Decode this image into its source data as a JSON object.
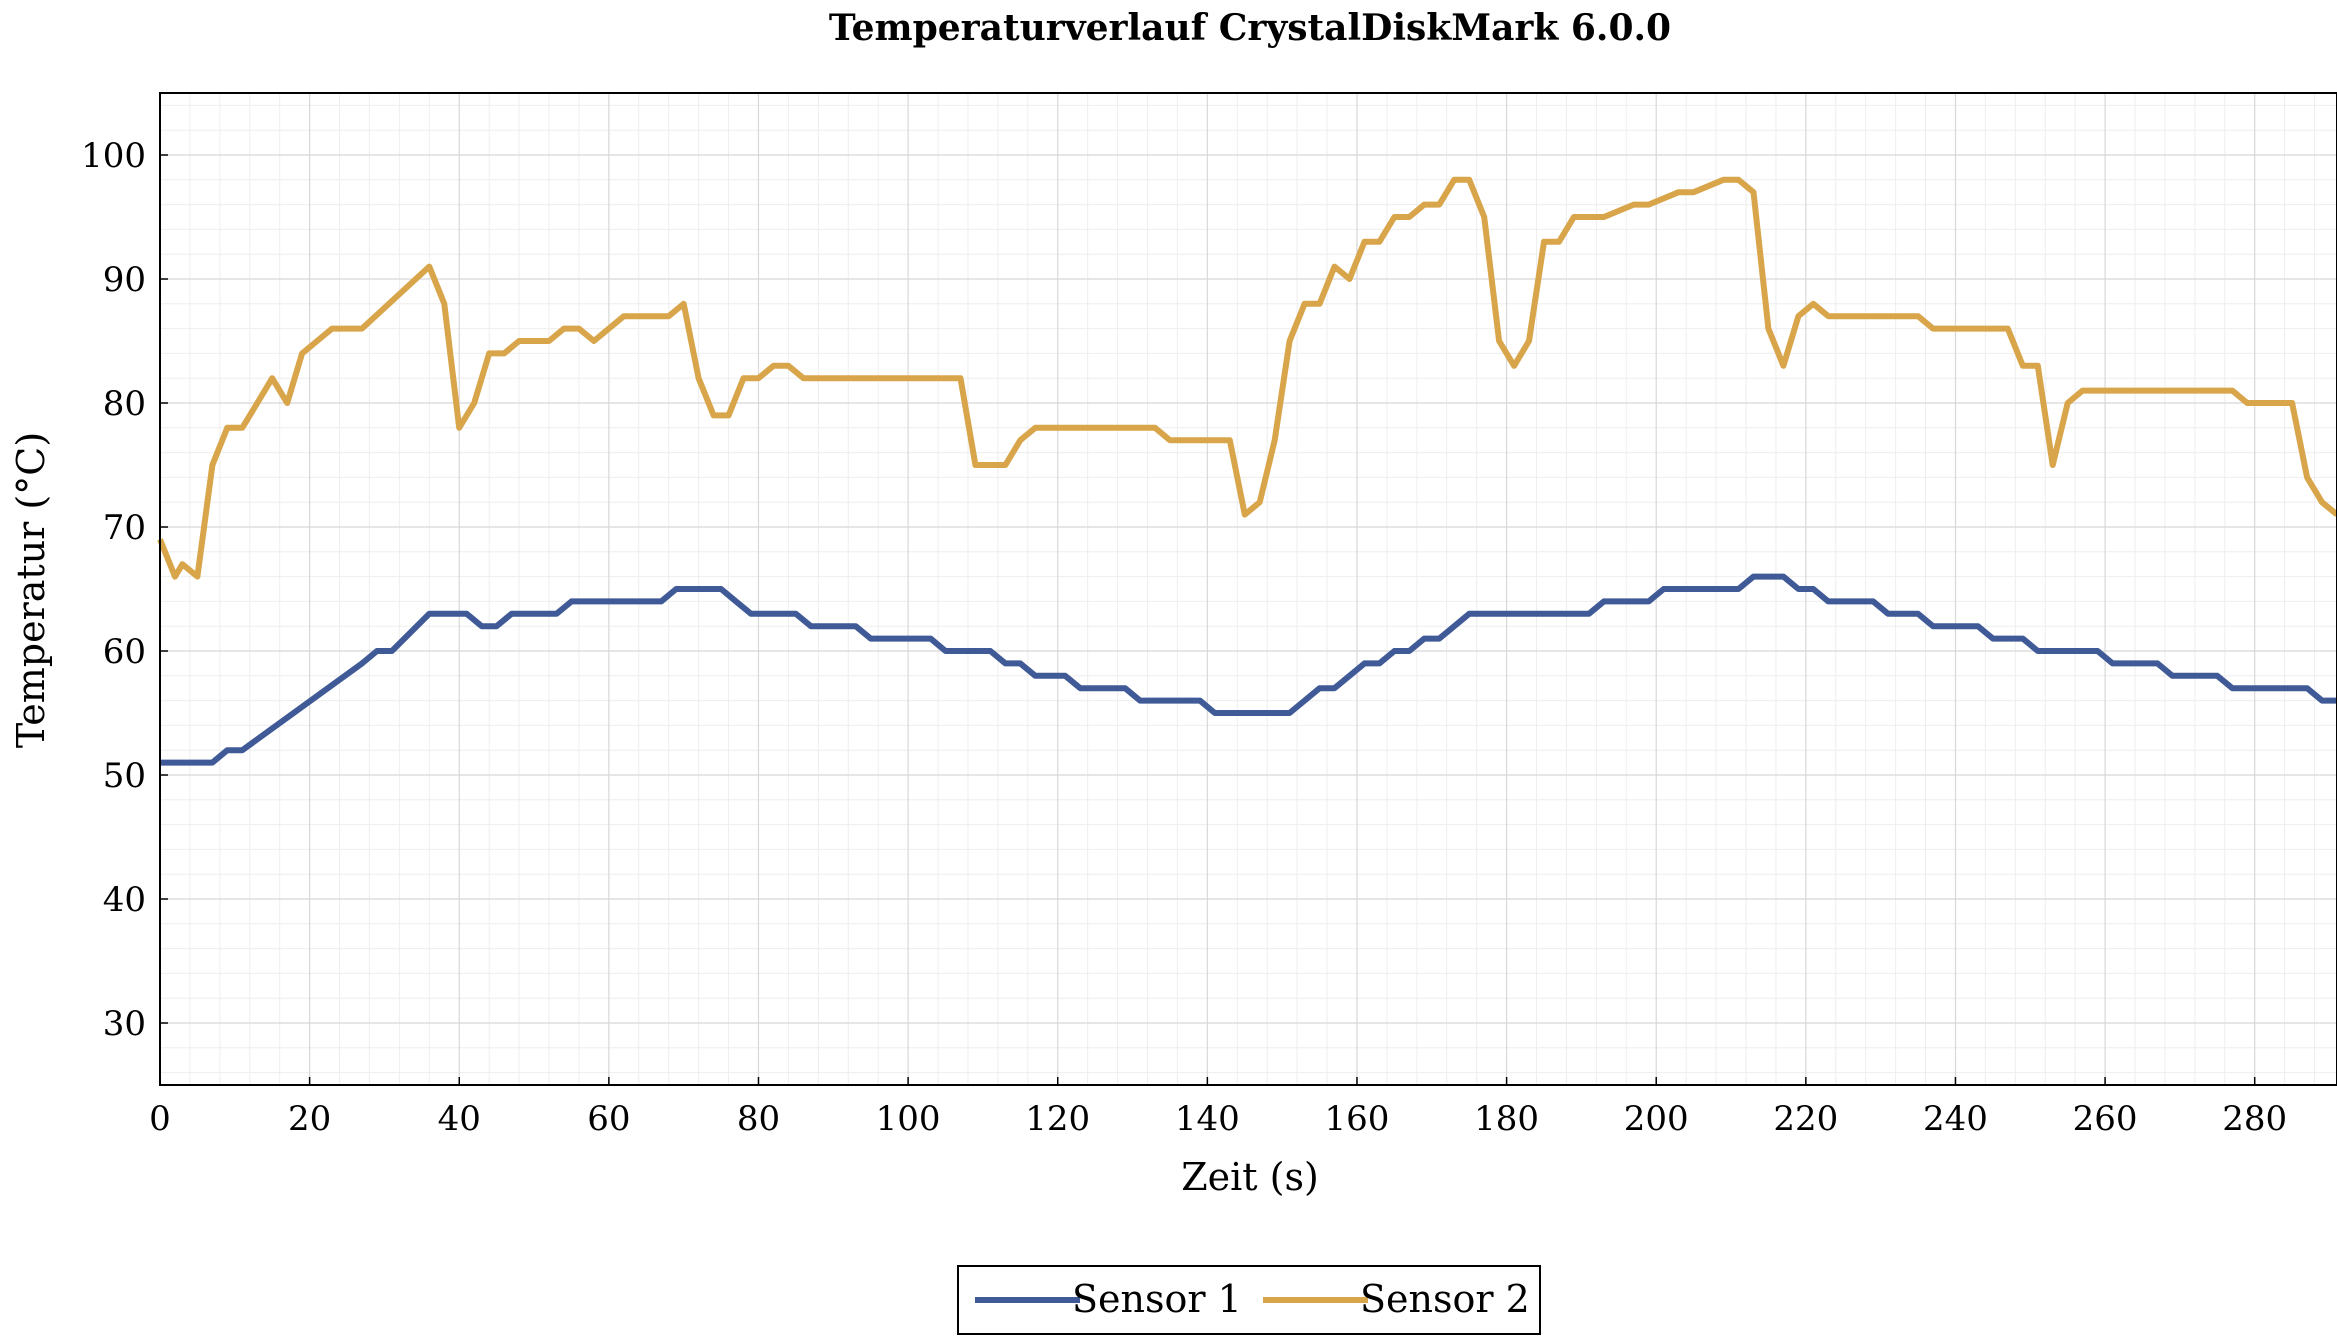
{
  "chart_data": {
    "type": "line",
    "title": "Temperaturverlauf CrystalDiskMark 6.0.0",
    "xlabel": "Zeit (s)",
    "ylabel": "Temperatur (°C)",
    "xlim": [
      0,
      291
    ],
    "ylim": [
      25,
      105
    ],
    "xticks": [
      0,
      20,
      40,
      60,
      80,
      100,
      120,
      140,
      160,
      180,
      200,
      220,
      240,
      260,
      280
    ],
    "yticks": [
      30,
      40,
      50,
      60,
      70,
      80,
      90,
      100
    ],
    "grid": true,
    "minor_grid": true,
    "legend_position": "bottom-center",
    "series": [
      {
        "name": "Sensor 1",
        "color": "#3f5a96",
        "x": [
          0,
          7,
          9,
          11,
          27,
          29,
          31,
          36,
          41,
          43,
          45,
          47,
          53,
          55,
          67,
          69,
          75,
          77,
          79,
          85,
          87,
          93,
          95,
          103,
          105,
          111,
          113,
          115,
          117,
          121,
          123,
          129,
          131,
          133,
          139,
          141,
          143,
          151,
          155,
          157,
          161,
          163,
          165,
          167,
          169,
          171,
          175,
          177,
          191,
          193,
          199,
          201,
          211,
          213,
          217,
          219,
          221,
          223,
          229,
          231,
          235,
          237,
          243,
          245,
          249,
          251,
          257,
          259,
          261,
          267,
          269,
          275,
          277,
          279,
          287,
          289,
          291
        ],
        "values": [
          51,
          51,
          52,
          52,
          59,
          60,
          60,
          63,
          63,
          62,
          62,
          63,
          63,
          64,
          64,
          65,
          65,
          64,
          63,
          63,
          62,
          62,
          61,
          61,
          60,
          60,
          59,
          59,
          58,
          58,
          57,
          57,
          56,
          56,
          56,
          55,
          55,
          55,
          57,
          57,
          59,
          59,
          60,
          60,
          61,
          61,
          63,
          63,
          63,
          64,
          64,
          65,
          65,
          66,
          66,
          65,
          65,
          64,
          64,
          63,
          63,
          62,
          62,
          61,
          61,
          60,
          60,
          60,
          59,
          59,
          58,
          58,
          57,
          57,
          57,
          56,
          56
        ]
      },
      {
        "name": "Sensor 2",
        "color": "#d9a54a",
        "x": [
          0,
          2,
          3,
          5,
          7,
          9,
          11,
          13,
          15,
          17,
          19,
          21,
          23,
          25,
          27,
          36,
          38,
          40,
          42,
          44,
          46,
          48,
          50,
          52,
          54,
          56,
          58,
          60,
          62,
          64,
          66,
          68,
          70,
          72,
          74,
          76,
          78,
          80,
          82,
          84,
          86,
          88,
          90,
          107,
          109,
          113,
          115,
          117,
          119,
          133,
          135,
          143,
          145,
          147,
          149,
          151,
          153,
          155,
          157,
          159,
          161,
          163,
          165,
          167,
          169,
          171,
          173,
          175,
          177,
          179,
          181,
          183,
          185,
          187,
          189,
          191,
          193,
          197,
          199,
          203,
          205,
          209,
          211,
          213,
          215,
          217,
          219,
          221,
          223,
          225,
          235,
          237,
          247,
          249,
          251,
          253,
          255,
          257,
          259,
          275,
          277,
          279,
          285,
          287,
          289,
          291
        ],
        "values": [
          69,
          66,
          67,
          66,
          75,
          78,
          78,
          80,
          82,
          80,
          84,
          85,
          86,
          86,
          86,
          91,
          88,
          78,
          80,
          84,
          84,
          85,
          85,
          85,
          86,
          86,
          85,
          86,
          87,
          87,
          87,
          87,
          88,
          82,
          79,
          79,
          82,
          82,
          83,
          83,
          82,
          82,
          82,
          82,
          75,
          75,
          77,
          78,
          78,
          78,
          77,
          77,
          71,
          72,
          77,
          85,
          88,
          88,
          91,
          90,
          93,
          93,
          95,
          95,
          96,
          96,
          98,
          98,
          95,
          85,
          83,
          85,
          93,
          93,
          95,
          95,
          95,
          96,
          96,
          97,
          97,
          98,
          98,
          97,
          86,
          83,
          87,
          88,
          87,
          87,
          87,
          86,
          86,
          83,
          83,
          75,
          80,
          81,
          81,
          81,
          81,
          80,
          80,
          74,
          72,
          71
        ]
      }
    ]
  }
}
